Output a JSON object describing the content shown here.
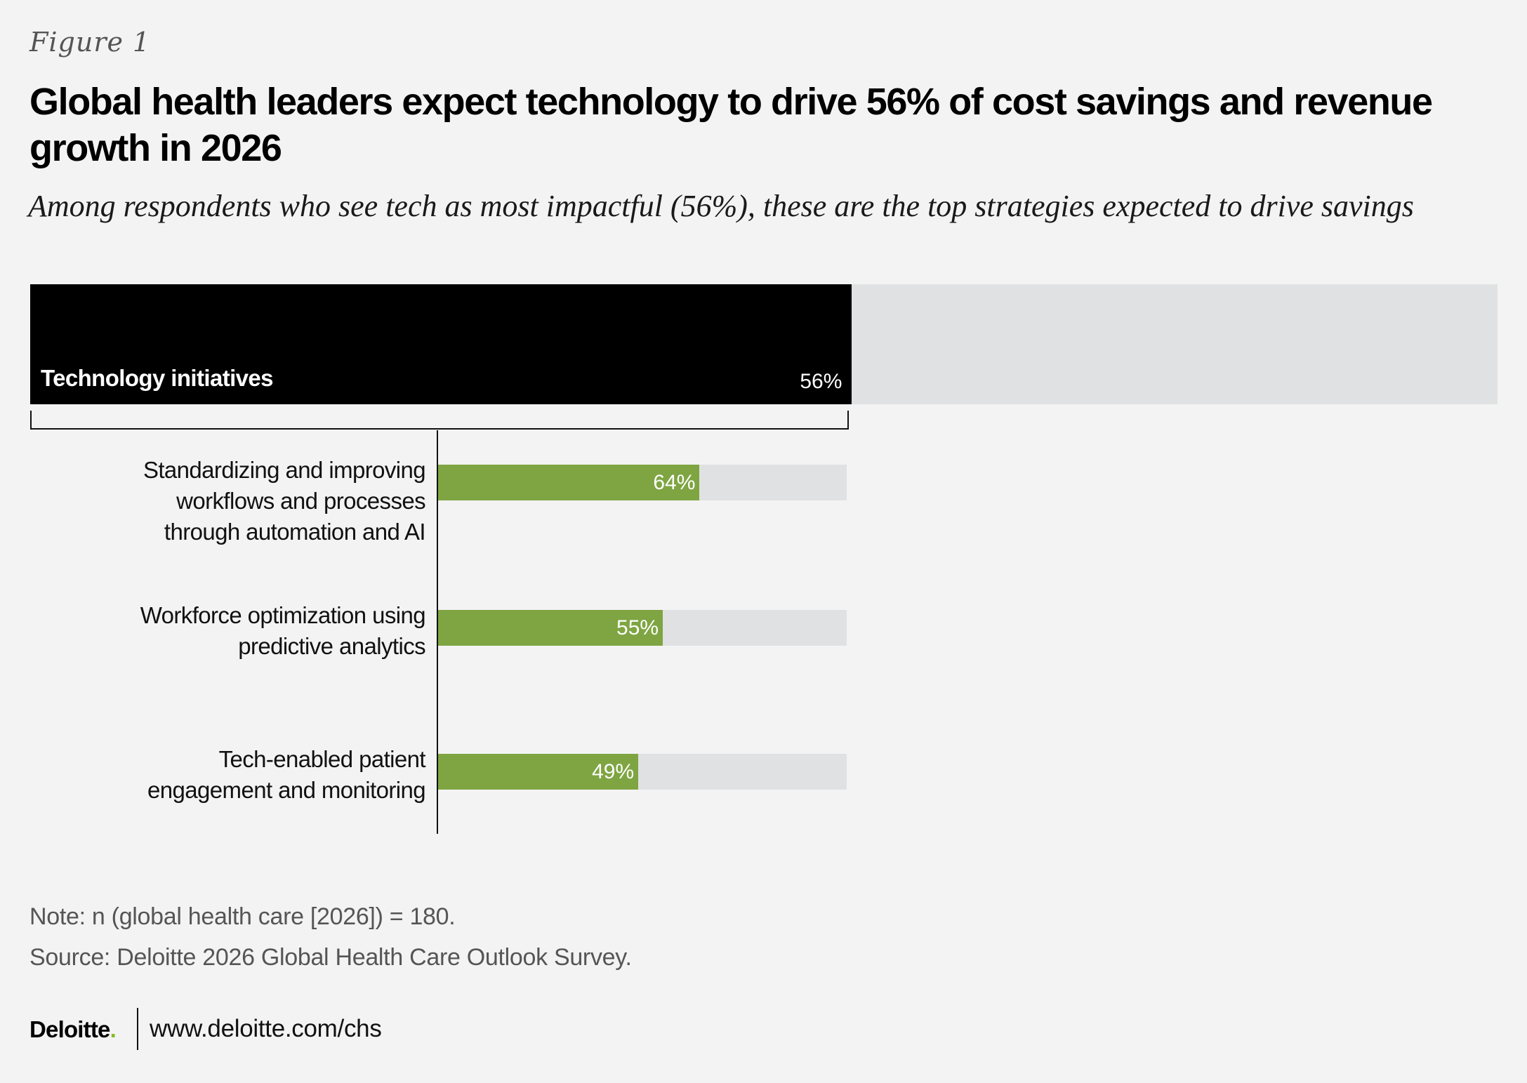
{
  "header": {
    "figure_label": "Figure 1",
    "title": "Global health leaders expect technology to drive 56% of cost savings and revenue growth in 2026",
    "subtitle": "Among respondents who see tech as most impactful (56%), these are the top strategies expected to drive savings"
  },
  "chart_data": {
    "type": "bar",
    "title": "Global health leaders expect technology to drive 56% of cost savings and revenue growth in 2026",
    "subtitle": "Among respondents who see tech as most impactful (56%), these are the top strategies expected to drive savings",
    "unit": "%",
    "ylim": [
      0,
      100
    ],
    "grid": false,
    "legend": "none",
    "overall": {
      "category": "Technology initiatives",
      "value": 56,
      "value_label": "56%"
    },
    "categories": [
      "Standardizing and improving workflows and processes through automation and AI",
      "Workforce optimization using predictive analytics",
      "Tech-enabled patient engagement and monitoring"
    ],
    "category_lines": [
      [
        "Standardizing and improving",
        "workflows and processes",
        "through automation and AI"
      ],
      [
        "Workforce optimization using",
        "predictive analytics"
      ],
      [
        "Tech-enabled patient",
        "engagement and monitoring"
      ]
    ],
    "values": [
      64,
      55,
      49
    ],
    "value_labels": [
      "64%",
      "55%",
      "49%"
    ]
  },
  "footer": {
    "note": "Note: n (global health care [2026]) = 180.",
    "source": "Source: Deloitte 2026 Global Health Care Outlook Survey.",
    "brand_name": "Deloitte",
    "brand_dot": ".",
    "url": "www.deloitte.com/chs"
  },
  "colors": {
    "background": "#f3f3f3",
    "overall_bar": "#000000",
    "bar": "#7ea542",
    "track": "#e0e1e2",
    "brand_dot": "#86bc25"
  }
}
